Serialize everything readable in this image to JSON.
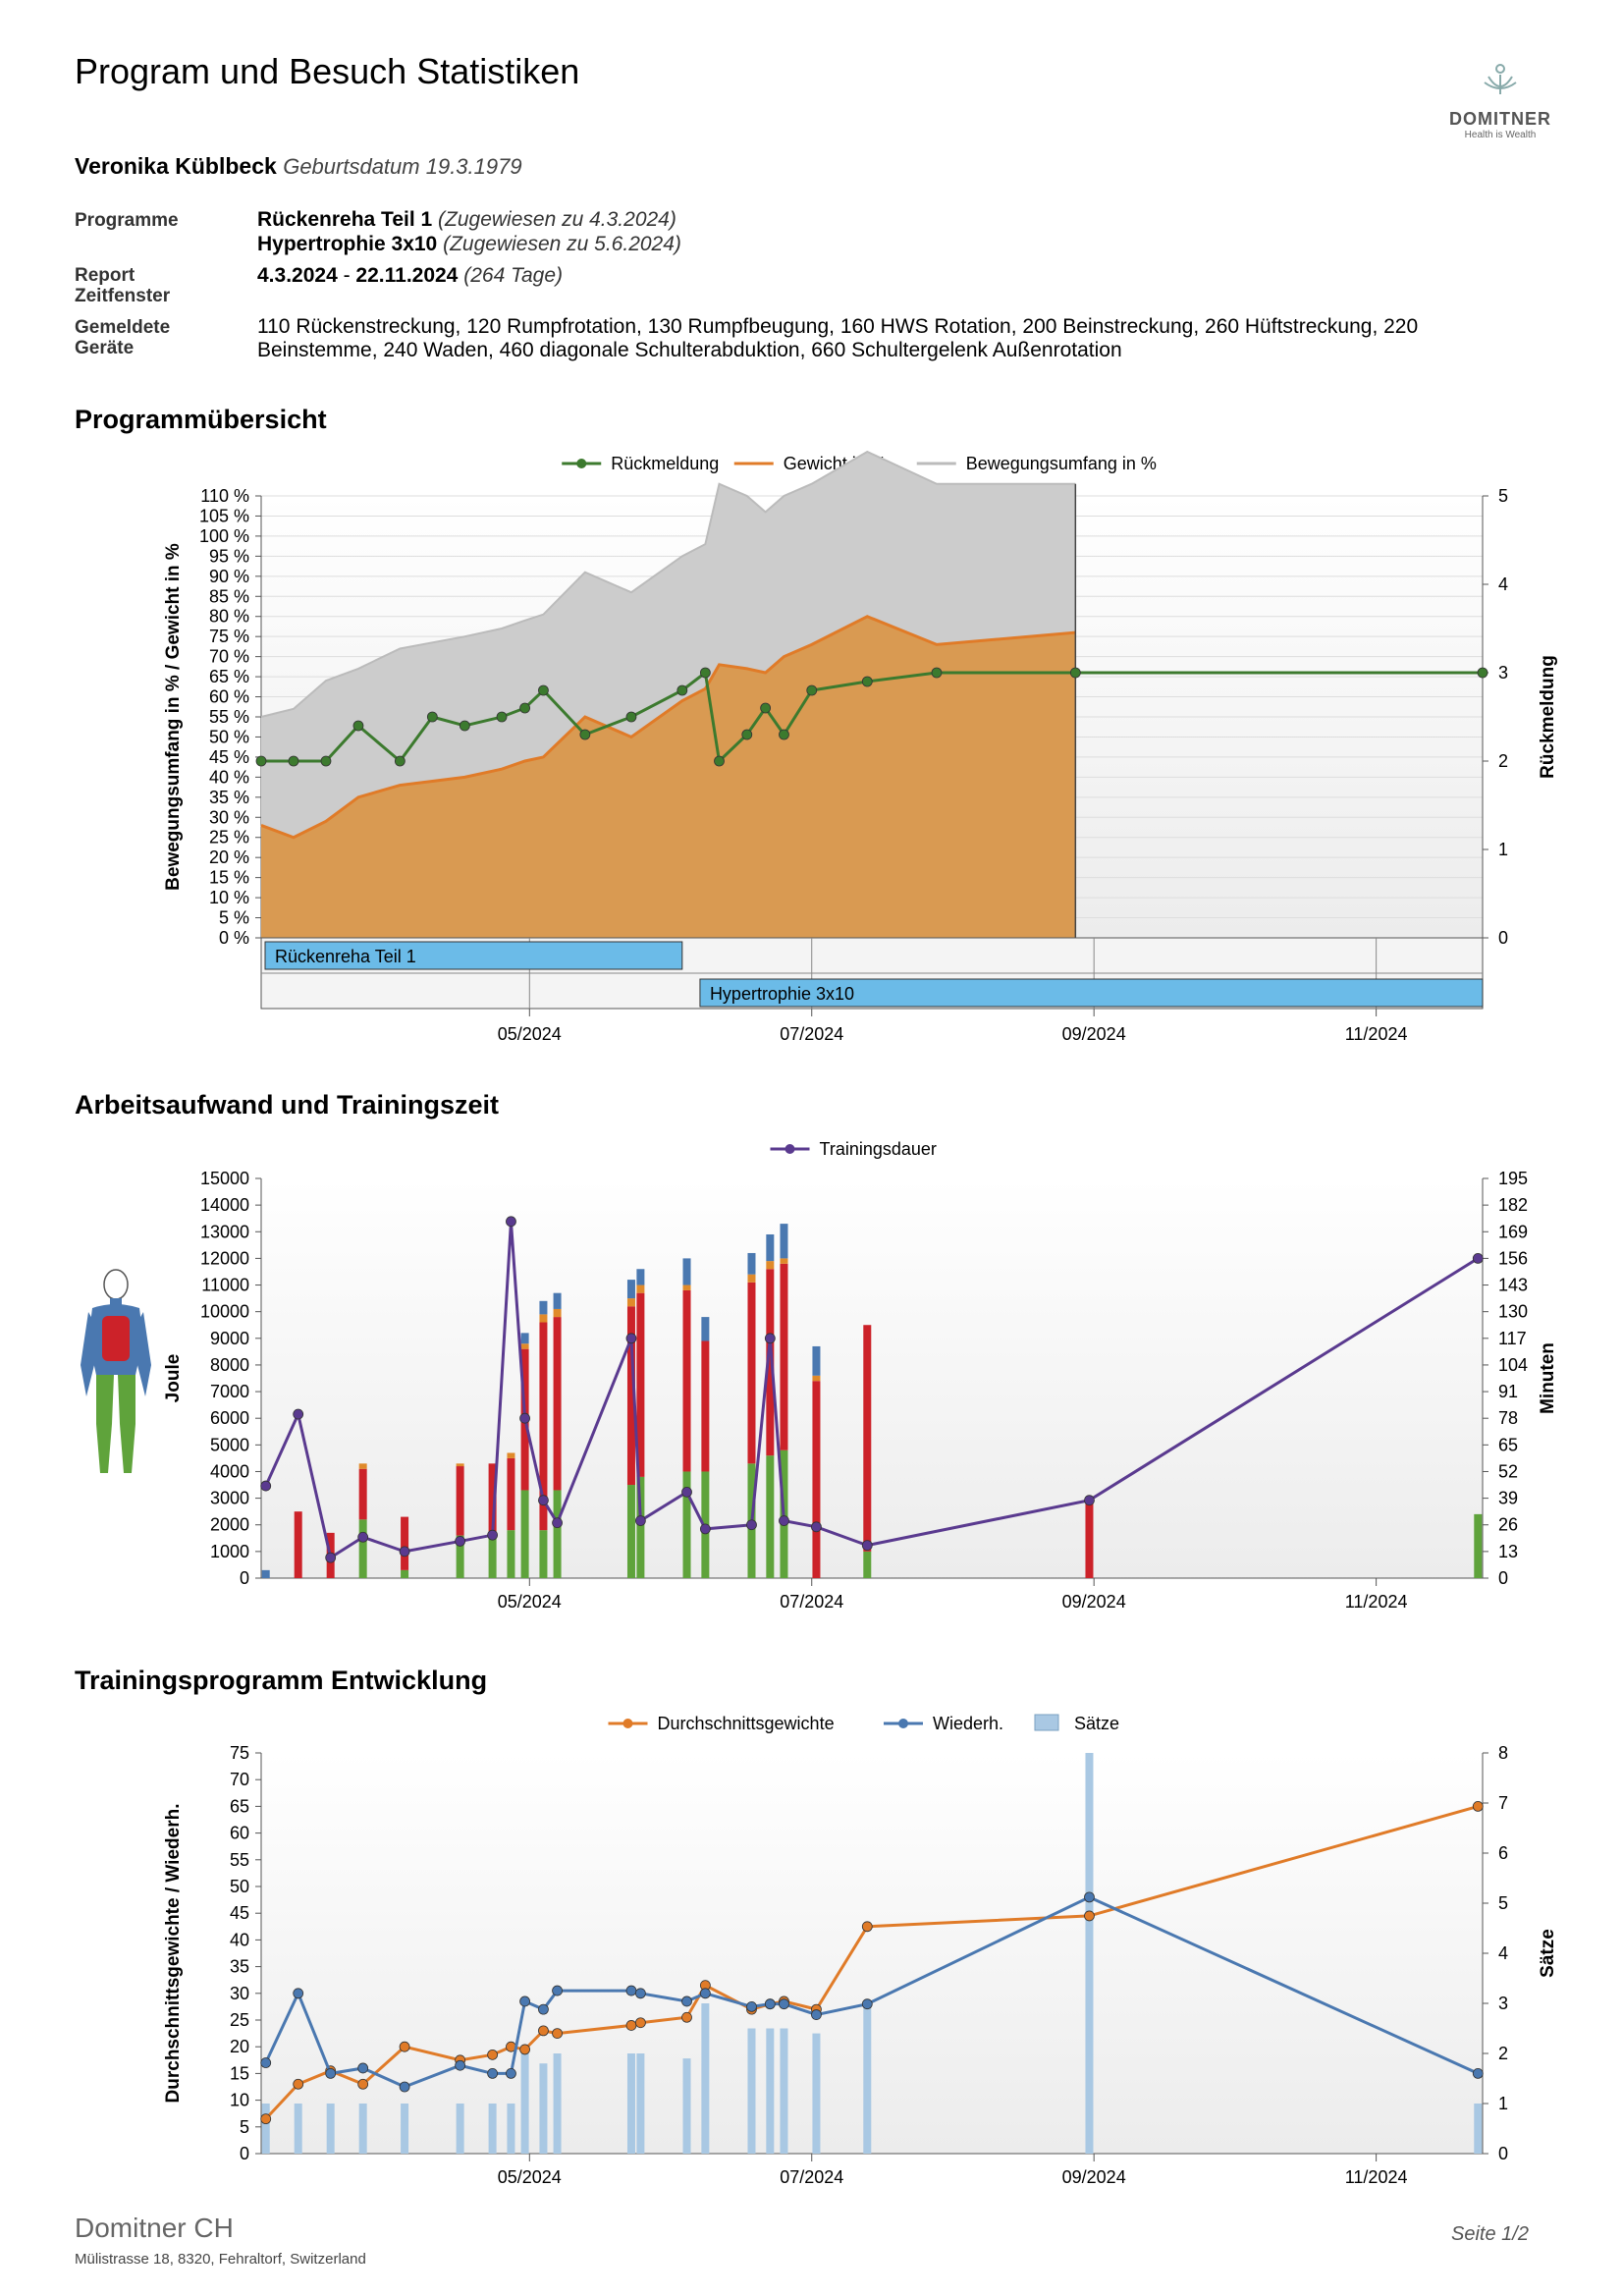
{
  "header": {
    "title": "Program und Besuch Statistiken",
    "logo_name": "DOMITNER",
    "logo_tagline": "Health is Wealth"
  },
  "patient": {
    "name": "Veronika Küblbeck",
    "birth_label": "Geburtsdatum 19.3.1979"
  },
  "info": {
    "programs_label": "Programme",
    "program1_name": "Rückenreha Teil 1",
    "program1_assigned": "(Zugewiesen zu 4.3.2024)",
    "program2_name": "Hypertrophie 3x10",
    "program2_assigned": "(Zugewiesen zu 5.6.2024)",
    "report_label_1": "Report",
    "report_label_2": "Zeitfenster",
    "report_start": "4.3.2024",
    "report_sep": " - ",
    "report_end": "22.11.2024",
    "report_days": "(264 Tage)",
    "devices_label_1": "Gemeldete",
    "devices_label_2": "Geräte",
    "devices_line1": "110 Rückenstreckung, 120 Rumpfrotation, 130 Rumpfbeugung, 160 HWS Rotation, 200 Beinstreckung, 260 Hüftstreckung, 220",
    "devices_line2": "Beinstemme, 240 Waden, 460 diagonale Schulterabduktion, 660 Schultergelenk Außenrotation"
  },
  "sections": {
    "overview": "Programmübersicht",
    "work": "Arbeitsaufwand und Trainingszeit",
    "development": "Trainingsprogramm Entwicklung"
  },
  "footer": {
    "company": "Domitner CH",
    "address": "Mülistrasse 18, 8320, Fehraltorf, Switzerland",
    "page": "Seite 1/2"
  },
  "colors": {
    "feedback": "#3c7a2e",
    "weight": "#e07b28",
    "weight_fill": "#d99a52",
    "rom": "#bbbbbb",
    "duration": "#5a3a8f",
    "joule_green": "#5fa33b",
    "joule_red": "#cc2229",
    "joule_orange": "#e08a2a",
    "joule_blue": "#4a78b0",
    "avg_weight": "#e07b28",
    "reps": "#4a78b0",
    "sets": "#a9c8e3",
    "program_bar": "#6bbbe8"
  },
  "chart_data": [
    {
      "type": "area",
      "legend": [
        "Rückmeldung",
        "Gewicht in %",
        "Bewegungsumfang in %"
      ],
      "ylabel": "Bewegungsumfang in % / Gewicht in %",
      "y2label": "Rückmeldung",
      "ylim": [
        0,
        110
      ],
      "y2lim": [
        0,
        5
      ],
      "yticks": [
        "0 %",
        "5 %",
        "10 %",
        "15 %",
        "20 %",
        "25 %",
        "30 %",
        "35 %",
        "40 %",
        "45 %",
        "50 %",
        "55 %",
        "60 %",
        "65 %",
        "70 %",
        "75 %",
        "80 %",
        "85 %",
        "90 %",
        "95 %",
        "100 %",
        "105 %",
        "110 %"
      ],
      "y2ticks": [
        "0",
        "1",
        "2",
        "3",
        "4",
        "5"
      ],
      "xticks": [
        "05/2024",
        "07/2024",
        "09/2024",
        "11/2024"
      ],
      "xtick_days": [
        58,
        119,
        180,
        241
      ],
      "xlim_days": [
        0,
        264
      ],
      "rom": {
        "days": [
          0,
          7,
          14,
          21,
          30,
          37,
          44,
          52,
          57,
          61,
          70,
          80,
          91,
          96,
          99,
          105,
          109,
          113,
          119,
          131,
          146,
          176
        ],
        "values": [
          27,
          32,
          35,
          32,
          34,
          34.5,
          35,
          35,
          35,
          35.5,
          36,
          36,
          36,
          36,
          45,
          43,
          40,
          40,
          40,
          41,
          40,
          37
        ]
      },
      "weight": {
        "days": [
          0,
          7,
          14,
          21,
          30,
          37,
          44,
          52,
          57,
          61,
          70,
          80,
          91,
          96,
          99,
          105,
          109,
          113,
          119,
          131,
          146,
          176
        ],
        "values": [
          28,
          25,
          29,
          35,
          38,
          39,
          40,
          42,
          44,
          45,
          55,
          50,
          59,
          62,
          68,
          67,
          66,
          70,
          73,
          80,
          73,
          76
        ]
      },
      "feedback": {
        "days": [
          0,
          7,
          14,
          21,
          30,
          37,
          44,
          52,
          57,
          61,
          70,
          80,
          91,
          96,
          99,
          105,
          109,
          113,
          119,
          131,
          146,
          176,
          264
        ],
        "values": [
          2,
          2,
          2,
          2.4,
          2,
          2.5,
          2.4,
          2.5,
          2.6,
          2.8,
          2.3,
          2.5,
          2.8,
          3,
          2,
          2.3,
          2.6,
          2.3,
          2.8,
          2.9,
          3,
          3,
          3
        ]
      },
      "programs": [
        {
          "name": "Rückenreha Teil 1",
          "start": 0,
          "end": 91
        },
        {
          "name": "Hypertrophie 3x10",
          "start": 94,
          "end": 264
        }
      ]
    },
    {
      "type": "bar",
      "legend": [
        "Trainingsdauer"
      ],
      "ylabel": "Joule",
      "y2label": "Minuten",
      "ylim": [
        0,
        15000
      ],
      "y2lim": [
        0,
        195
      ],
      "yticks": [
        "0",
        "1000",
        "2000",
        "3000",
        "4000",
        "5000",
        "6000",
        "7000",
        "8000",
        "9000",
        "10000",
        "11000",
        "12000",
        "13000",
        "14000",
        "15000"
      ],
      "y2ticks": [
        "0",
        "13",
        "26",
        "39",
        "52",
        "65",
        "78",
        "91",
        "104",
        "117",
        "130",
        "143",
        "156",
        "169",
        "182",
        "195"
      ],
      "xticks": [
        "05/2024",
        "07/2024",
        "09/2024",
        "11/2024"
      ],
      "bars": [
        {
          "day": 1,
          "green": 0,
          "red": 0,
          "orange": 0,
          "blue": 300
        },
        {
          "day": 8,
          "green": 0,
          "red": 2500,
          "orange": 0,
          "blue": 0
        },
        {
          "day": 15,
          "green": 0,
          "red": 1700,
          "orange": 0,
          "blue": 0
        },
        {
          "day": 22,
          "green": 2200,
          "red": 1900,
          "orange": 200,
          "blue": 0
        },
        {
          "day": 31,
          "green": 300,
          "red": 2000,
          "orange": 0,
          "blue": 0
        },
        {
          "day": 43,
          "green": 1600,
          "red": 2600,
          "orange": 100,
          "blue": 0
        },
        {
          "day": 50,
          "green": 1600,
          "red": 2700,
          "orange": 0,
          "blue": 0
        },
        {
          "day": 54,
          "green": 1800,
          "red": 2700,
          "orange": 200,
          "blue": 0
        },
        {
          "day": 57,
          "green": 3300,
          "red": 5300,
          "orange": 200,
          "blue": 400
        },
        {
          "day": 61,
          "green": 1800,
          "red": 7800,
          "orange": 300,
          "blue": 500
        },
        {
          "day": 64,
          "green": 3300,
          "red": 6500,
          "orange": 300,
          "blue": 600
        },
        {
          "day": 80,
          "green": 3500,
          "red": 6700,
          "orange": 300,
          "blue": 700
        },
        {
          "day": 82,
          "green": 3800,
          "red": 6900,
          "orange": 300,
          "blue": 600
        },
        {
          "day": 92,
          "green": 4000,
          "red": 6800,
          "orange": 200,
          "blue": 1000
        },
        {
          "day": 96,
          "green": 4000,
          "red": 4900,
          "orange": 0,
          "blue": 900
        },
        {
          "day": 106,
          "green": 4300,
          "red": 6800,
          "orange": 300,
          "blue": 800
        },
        {
          "day": 110,
          "green": 4600,
          "red": 7000,
          "orange": 300,
          "blue": 1000
        },
        {
          "day": 113,
          "green": 4800,
          "red": 7000,
          "orange": 200,
          "blue": 1300
        },
        {
          "day": 120,
          "green": 0,
          "red": 7400,
          "orange": 200,
          "blue": 1100
        },
        {
          "day": 131,
          "green": 1000,
          "red": 8500,
          "orange": 0,
          "blue": 0
        },
        {
          "day": 179,
          "green": 0,
          "red": 2900,
          "orange": 0,
          "blue": 0
        },
        {
          "day": 263,
          "green": 2400,
          "red": 0,
          "orange": 0,
          "blue": 0
        }
      ],
      "duration": {
        "days": [
          1,
          8,
          15,
          22,
          31,
          43,
          50,
          54,
          57,
          61,
          64,
          80,
          82,
          92,
          96,
          106,
          110,
          113,
          120,
          131,
          179,
          263
        ],
        "values": [
          45,
          80,
          10,
          20,
          13,
          18,
          21,
          174,
          78,
          38,
          27,
          117,
          28,
          42,
          24,
          26,
          117,
          28,
          25,
          16,
          38,
          156
        ]
      }
    },
    {
      "type": "line",
      "legend": [
        "Durchschnittsgewichte",
        "Wiederh.",
        "Sätze"
      ],
      "ylabel": "Durchschnittsgewichte / Wiederh.",
      "y2label": "Sätze",
      "ylim": [
        0,
        75
      ],
      "y2lim": [
        0,
        8
      ],
      "yticks": [
        "0",
        "5",
        "10",
        "15",
        "20",
        "25",
        "30",
        "35",
        "40",
        "45",
        "50",
        "55",
        "60",
        "65",
        "70",
        "75"
      ],
      "y2ticks": [
        "0",
        "1",
        "2",
        "3",
        "4",
        "5",
        "6",
        "7",
        "8"
      ],
      "xticks": [
        "05/2024",
        "07/2024",
        "09/2024",
        "11/2024"
      ],
      "sets": {
        "days": [
          1,
          8,
          15,
          22,
          31,
          43,
          50,
          54,
          57,
          61,
          64,
          80,
          82,
          92,
          96,
          106,
          110,
          113,
          120,
          131,
          179,
          263
        ],
        "values": [
          1,
          1,
          1,
          1,
          1,
          1,
          1,
          1,
          2,
          1.8,
          2,
          2,
          2,
          1.9,
          3,
          2.5,
          2.5,
          2.5,
          2.4,
          3,
          8,
          1
        ]
      },
      "avg_weight": {
        "days": [
          1,
          8,
          15,
          22,
          31,
          43,
          50,
          54,
          57,
          61,
          64,
          80,
          82,
          92,
          96,
          106,
          110,
          113,
          120,
          131,
          179,
          263
        ],
        "values": [
          6.5,
          13,
          15.5,
          13,
          20,
          17.5,
          18.5,
          20,
          19.5,
          23,
          22.5,
          24,
          24.5,
          25.5,
          31.5,
          27,
          28,
          28.5,
          27,
          42.5,
          44.5,
          65
        ]
      },
      "reps": {
        "days": [
          1,
          8,
          15,
          22,
          31,
          43,
          50,
          54,
          57,
          61,
          64,
          80,
          82,
          92,
          96,
          106,
          110,
          113,
          120,
          131,
          179,
          263
        ],
        "values": [
          17,
          30,
          15,
          16,
          12.5,
          16.5,
          15,
          15,
          28.5,
          27,
          30.5,
          30.5,
          30,
          28.5,
          30,
          27.5,
          28,
          28,
          26,
          28,
          48,
          15
        ]
      }
    }
  ]
}
